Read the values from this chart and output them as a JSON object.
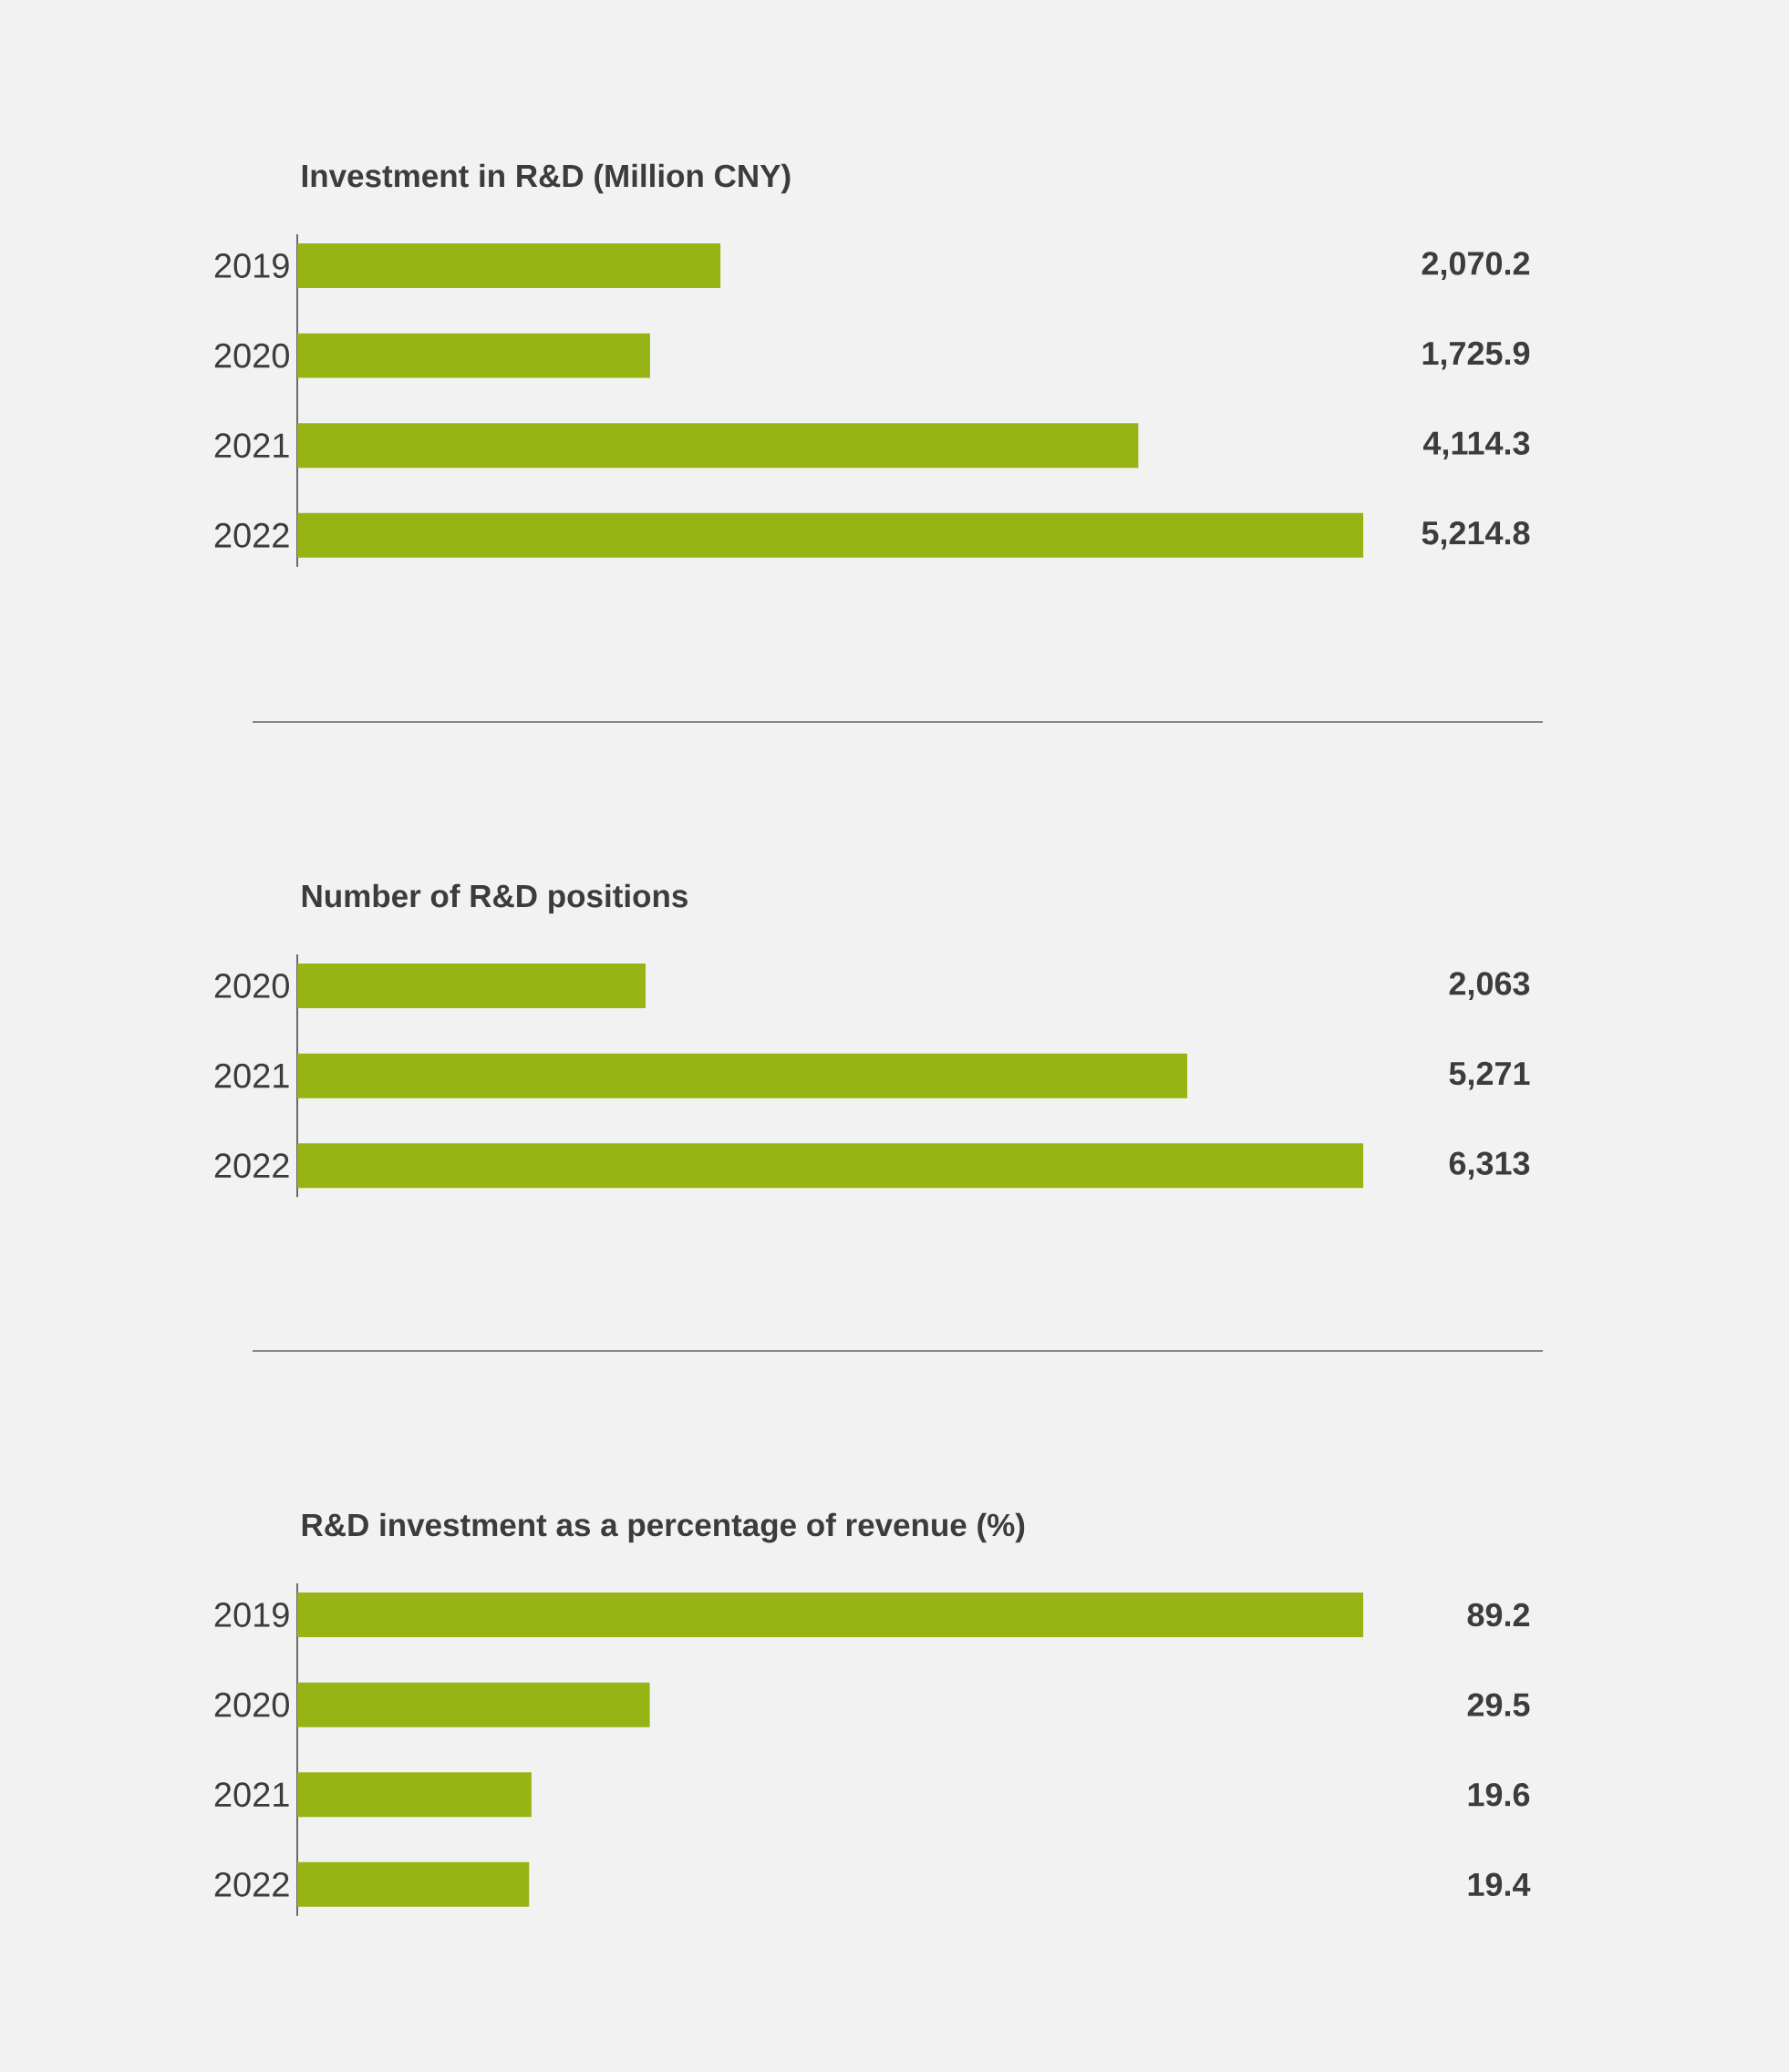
{
  "chart_data": [
    {
      "type": "bar",
      "orientation": "horizontal",
      "title": "Investment in R&D (Million CNY)",
      "categories": [
        "2019",
        "2020",
        "2021",
        "2022"
      ],
      "values": [
        2070.2,
        1725.9,
        4114.3,
        5214.8
      ],
      "value_labels": [
        "2,070.2",
        "1,725.9",
        "4,114.3",
        "5,214.8"
      ],
      "color": "#96b414"
    },
    {
      "type": "bar",
      "orientation": "horizontal",
      "title": "Number of R&D positions",
      "categories": [
        "2020",
        "2021",
        "2022"
      ],
      "values": [
        2063,
        5271,
        6313
      ],
      "value_labels": [
        "2,063",
        "5,271",
        "6,313"
      ],
      "color": "#96b414"
    },
    {
      "type": "bar",
      "orientation": "horizontal",
      "title": "R&D investment as a percentage of revenue (%)",
      "categories": [
        "2019",
        "2020",
        "2021",
        "2022"
      ],
      "values": [
        89.2,
        29.5,
        19.6,
        19.4
      ],
      "value_labels": [
        "89.2",
        "29.5",
        "19.6",
        "19.4"
      ],
      "color": "#96b414"
    }
  ]
}
